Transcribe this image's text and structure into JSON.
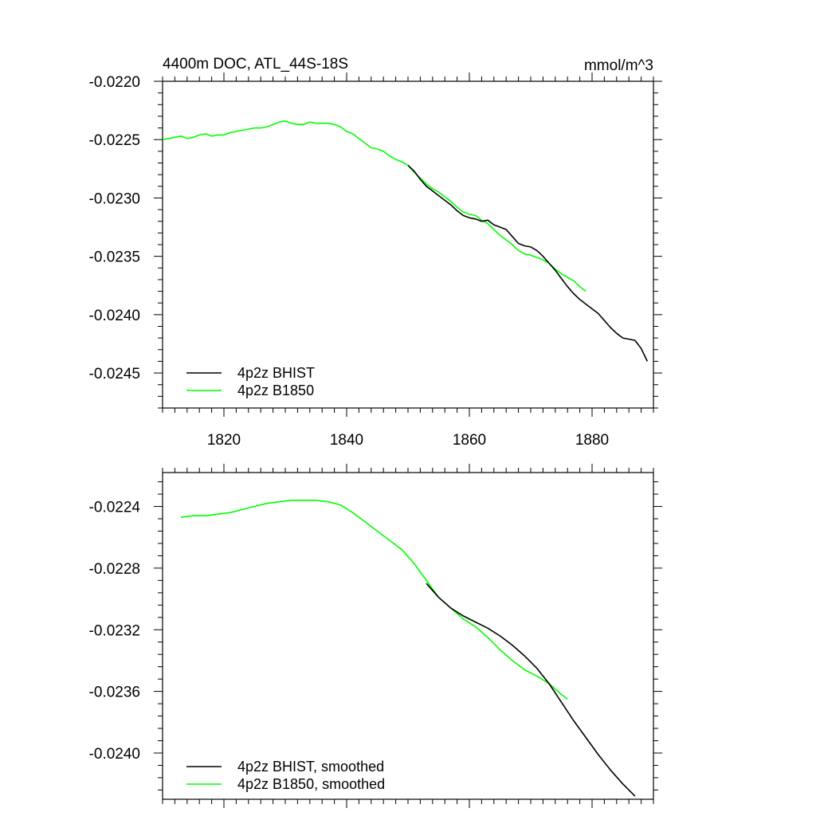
{
  "chart_data": [
    {
      "type": "line",
      "title": "4400m DOC, ATL_44S-18S",
      "units": "mmol/m^3",
      "xlim": [
        1810,
        1890
      ],
      "ylim": [
        -0.0248,
        -0.022
      ],
      "xticks": [
        1820,
        1840,
        1860,
        1880
      ],
      "xtick_labels": [
        "1820",
        "1840",
        "1860",
        "1880"
      ],
      "yticks": [
        -0.022,
        -0.0225,
        -0.023,
        -0.0235,
        -0.024,
        -0.0245
      ],
      "ytick_labels": [
        "-0.0220",
        "-0.0225",
        "-0.0230",
        "-0.0235",
        "-0.0240",
        "-0.0245"
      ],
      "legend_position": "bottom-left",
      "series": [
        {
          "name": "4p2z BHIST",
          "color": "#000000",
          "x": [
            1850,
            1851,
            1852,
            1853,
            1854,
            1855,
            1856,
            1857,
            1858,
            1859,
            1860,
            1861,
            1862,
            1863,
            1864,
            1865,
            1866,
            1867,
            1868,
            1869,
            1870,
            1871,
            1872,
            1873,
            1874,
            1875,
            1876,
            1877,
            1878,
            1879,
            1880,
            1881,
            1882,
            1883,
            1884,
            1885,
            1886,
            1887,
            1888,
            1889
          ],
          "y": [
            -0.02272,
            -0.02277,
            -0.02284,
            -0.0229,
            -0.02294,
            -0.02298,
            -0.02302,
            -0.02306,
            -0.02311,
            -0.02315,
            -0.02317,
            -0.02318,
            -0.0232,
            -0.02319,
            -0.02323,
            -0.02325,
            -0.02327,
            -0.02333,
            -0.02339,
            -0.02341,
            -0.02342,
            -0.02345,
            -0.0235,
            -0.02356,
            -0.02362,
            -0.02369,
            -0.02376,
            -0.02382,
            -0.02387,
            -0.02391,
            -0.02395,
            -0.02399,
            -0.02405,
            -0.02411,
            -0.02416,
            -0.0242,
            -0.02421,
            -0.02422,
            -0.02429,
            -0.0244
          ]
        },
        {
          "name": "4p2z B1850",
          "color": "#00ff00",
          "x": [
            1810,
            1811,
            1812,
            1813,
            1814,
            1815,
            1816,
            1817,
            1818,
            1819,
            1820,
            1821,
            1822,
            1823,
            1824,
            1825,
            1826,
            1827,
            1828,
            1829,
            1830,
            1831,
            1832,
            1833,
            1834,
            1835,
            1836,
            1837,
            1838,
            1839,
            1840,
            1841,
            1842,
            1843,
            1844,
            1845,
            1846,
            1847,
            1848,
            1849,
            1850,
            1851,
            1852,
            1853,
            1854,
            1855,
            1856,
            1857,
            1858,
            1859,
            1860,
            1861,
            1862,
            1863,
            1864,
            1865,
            1866,
            1867,
            1868,
            1869,
            1870,
            1871,
            1872,
            1873,
            1874,
            1875,
            1876,
            1877,
            1878,
            1879
          ],
          "y": [
            -0.0225,
            -0.02249,
            -0.02248,
            -0.02247,
            -0.02249,
            -0.02248,
            -0.02246,
            -0.02245,
            -0.02247,
            -0.02246,
            -0.02246,
            -0.02244,
            -0.02243,
            -0.02242,
            -0.02241,
            -0.0224,
            -0.0224,
            -0.02239,
            -0.02237,
            -0.02235,
            -0.02234,
            -0.02236,
            -0.02237,
            -0.02237,
            -0.02235,
            -0.02236,
            -0.02236,
            -0.02236,
            -0.02237,
            -0.02239,
            -0.02243,
            -0.02245,
            -0.02249,
            -0.02253,
            -0.02257,
            -0.02258,
            -0.0226,
            -0.02264,
            -0.02267,
            -0.02269,
            -0.02272,
            -0.02278,
            -0.02283,
            -0.02288,
            -0.02292,
            -0.02295,
            -0.02299,
            -0.02303,
            -0.02308,
            -0.02312,
            -0.02314,
            -0.02315,
            -0.02319,
            -0.02322,
            -0.02327,
            -0.02332,
            -0.02336,
            -0.0234,
            -0.02345,
            -0.02348,
            -0.02349,
            -0.02351,
            -0.02353,
            -0.02356,
            -0.02361,
            -0.02365,
            -0.02368,
            -0.02371,
            -0.02376,
            -0.0238
          ]
        }
      ]
    },
    {
      "type": "line",
      "title": "",
      "xlim": [
        1810,
        1890
      ],
      "ylim": [
        -0.0243,
        -0.02218
      ],
      "xticks": [
        1820,
        1840,
        1860,
        1880
      ],
      "xtick_labels": [
        "",
        "",
        "",
        ""
      ],
      "yticks": [
        -0.0224,
        -0.0228,
        -0.0232,
        -0.0236,
        -0.024
      ],
      "ytick_labels": [
        "-0.0224",
        "-0.0228",
        "-0.0232",
        "-0.0236",
        "-0.0240"
      ],
      "legend_position": "bottom-left",
      "series": [
        {
          "name": "4p2z BHIST, smoothed",
          "color": "#000000",
          "x": [
            1853,
            1855,
            1857,
            1859,
            1861,
            1863,
            1865,
            1867,
            1869,
            1871,
            1873,
            1875,
            1877,
            1879,
            1881,
            1883,
            1885,
            1887
          ],
          "y": [
            -0.0229,
            -0.02299,
            -0.02306,
            -0.02311,
            -0.02315,
            -0.02319,
            -0.02324,
            -0.0233,
            -0.02337,
            -0.02345,
            -0.02355,
            -0.02367,
            -0.02379,
            -0.0239,
            -0.02401,
            -0.02411,
            -0.0242,
            -0.02428
          ]
        },
        {
          "name": "4p2z B1850, smoothed",
          "color": "#00ff00",
          "x": [
            1813,
            1815,
            1817,
            1819,
            1821,
            1823,
            1825,
            1827,
            1829,
            1831,
            1833,
            1835,
            1837,
            1839,
            1841,
            1843,
            1845,
            1847,
            1849,
            1851,
            1853,
            1855,
            1857,
            1859,
            1861,
            1863,
            1865,
            1867,
            1869,
            1871,
            1873,
            1875,
            1876
          ],
          "y": [
            -0.02247,
            -0.02246,
            -0.02246,
            -0.02245,
            -0.02244,
            -0.02242,
            -0.0224,
            -0.02238,
            -0.02237,
            -0.02236,
            -0.02236,
            -0.02236,
            -0.02237,
            -0.02239,
            -0.02244,
            -0.0225,
            -0.02256,
            -0.02262,
            -0.02268,
            -0.02277,
            -0.02288,
            -0.02299,
            -0.02306,
            -0.02313,
            -0.02318,
            -0.02325,
            -0.02333,
            -0.0234,
            -0.02346,
            -0.0235,
            -0.02355,
            -0.02362,
            -0.02365
          ]
        }
      ]
    }
  ]
}
